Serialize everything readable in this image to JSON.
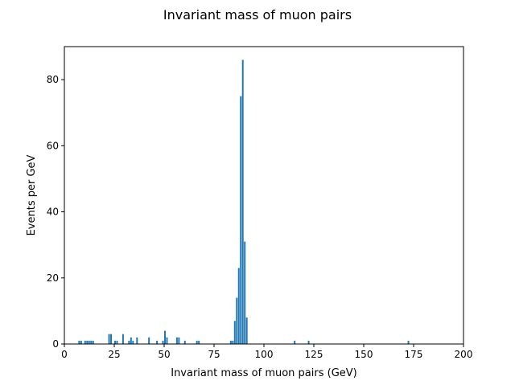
{
  "chart_data": {
    "type": "bar",
    "title": "Invariant mass of muon pairs",
    "xlabel": "Invariant mass of muon pairs (GeV)",
    "ylabel": "Events per GeV",
    "xlim": [
      0,
      200
    ],
    "ylim": [
      0,
      90
    ],
    "xticks": [
      0,
      25,
      50,
      75,
      100,
      125,
      150,
      175,
      200
    ],
    "yticks": [
      0,
      20,
      40,
      60,
      80
    ],
    "bin_width": 1,
    "grid": false,
    "legend": "none",
    "bar_color": "#1f77b4",
    "bins": [
      {
        "x": 7,
        "y": 1
      },
      {
        "x": 8,
        "y": 1
      },
      {
        "x": 10,
        "y": 1
      },
      {
        "x": 11,
        "y": 1
      },
      {
        "x": 12,
        "y": 1
      },
      {
        "x": 13,
        "y": 1
      },
      {
        "x": 14,
        "y": 1
      },
      {
        "x": 22,
        "y": 3
      },
      {
        "x": 23,
        "y": 3
      },
      {
        "x": 25,
        "y": 1
      },
      {
        "x": 26,
        "y": 1
      },
      {
        "x": 29,
        "y": 3
      },
      {
        "x": 32,
        "y": 1
      },
      {
        "x": 33,
        "y": 2
      },
      {
        "x": 34,
        "y": 1
      },
      {
        "x": 36,
        "y": 2
      },
      {
        "x": 42,
        "y": 2
      },
      {
        "x": 46,
        "y": 1
      },
      {
        "x": 49,
        "y": 1
      },
      {
        "x": 50,
        "y": 4
      },
      {
        "x": 51,
        "y": 2
      },
      {
        "x": 56,
        "y": 2
      },
      {
        "x": 57,
        "y": 2
      },
      {
        "x": 60,
        "y": 1
      },
      {
        "x": 66,
        "y": 1
      },
      {
        "x": 67,
        "y": 1
      },
      {
        "x": 83,
        "y": 1
      },
      {
        "x": 84,
        "y": 1
      },
      {
        "x": 85,
        "y": 7
      },
      {
        "x": 86,
        "y": 14
      },
      {
        "x": 87,
        "y": 23
      },
      {
        "x": 88,
        "y": 75
      },
      {
        "x": 89,
        "y": 86
      },
      {
        "x": 90,
        "y": 31
      },
      {
        "x": 91,
        "y": 8
      },
      {
        "x": 115,
        "y": 1
      },
      {
        "x": 122,
        "y": 1
      },
      {
        "x": 172,
        "y": 1
      }
    ]
  }
}
